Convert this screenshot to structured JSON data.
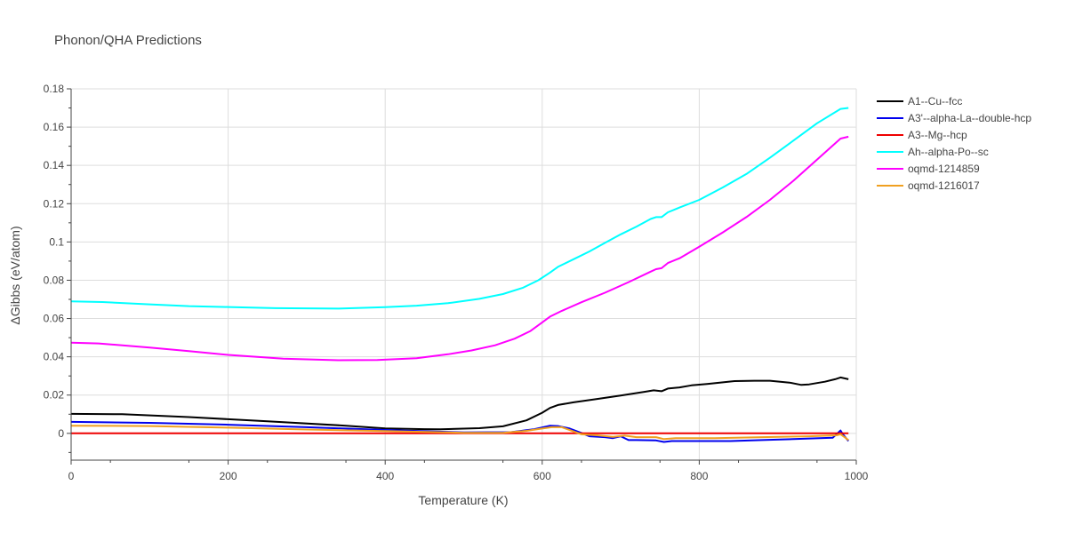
{
  "chart_data": {
    "type": "line",
    "title": "Phonon/QHA Predictions",
    "xlabel": "Temperature (K)",
    "ylabel": "ΔGibbs (eV/atom)",
    "xlim": [
      0,
      1000
    ],
    "ylim": [
      -0.014,
      0.18
    ],
    "xticks": [
      0,
      200,
      400,
      600,
      800,
      1000
    ],
    "xtick_labels": [
      "0",
      "200",
      "400",
      "600",
      "800",
      "1000"
    ],
    "yticks": [
      0,
      0.02,
      0.04,
      0.06,
      0.08,
      0.1,
      0.12,
      0.14,
      0.16,
      0.18
    ],
    "ytick_labels": [
      "0",
      "0.02",
      "0.04",
      "0.06",
      "0.08",
      "0.1",
      "0.12",
      "0.14",
      "0.16",
      "0.18"
    ],
    "grid": true,
    "legend_position": "top-right-outside",
    "series": [
      {
        "name": "A1--Cu--fcc",
        "color": "#000000",
        "points": [
          [
            0,
            0.0102
          ],
          [
            65,
            0.01
          ],
          [
            150,
            0.0085
          ],
          [
            250,
            0.0063
          ],
          [
            350,
            0.004
          ],
          [
            400,
            0.0026
          ],
          [
            450,
            0.0022
          ],
          [
            470,
            0.0021
          ],
          [
            520,
            0.0027
          ],
          [
            550,
            0.0037
          ],
          [
            580,
            0.0068
          ],
          [
            600,
            0.0108
          ],
          [
            610,
            0.0133
          ],
          [
            620,
            0.0148
          ],
          [
            640,
            0.0162
          ],
          [
            670,
            0.018
          ],
          [
            700,
            0.0198
          ],
          [
            730,
            0.0217
          ],
          [
            742,
            0.0225
          ],
          [
            752,
            0.022
          ],
          [
            760,
            0.0234
          ],
          [
            775,
            0.024
          ],
          [
            790,
            0.0251
          ],
          [
            810,
            0.0258
          ],
          [
            845,
            0.0273
          ],
          [
            870,
            0.0275
          ],
          [
            890,
            0.0275
          ],
          [
            915,
            0.0265
          ],
          [
            930,
            0.0253
          ],
          [
            940,
            0.0256
          ],
          [
            960,
            0.027
          ],
          [
            973,
            0.0283
          ],
          [
            980,
            0.0292
          ],
          [
            990,
            0.0283
          ]
        ]
      },
      {
        "name": "A3'--alpha-La--double-hcp",
        "color": "#0000ee",
        "points": [
          [
            0,
            0.006
          ],
          [
            100,
            0.0055
          ],
          [
            200,
            0.0045
          ],
          [
            300,
            0.0032
          ],
          [
            400,
            0.0018
          ],
          [
            500,
            0.0005
          ],
          [
            560,
            0.0006
          ],
          [
            590,
            0.0022
          ],
          [
            610,
            0.004
          ],
          [
            620,
            0.0038
          ],
          [
            635,
            0.0025
          ],
          [
            650,
            0.0002
          ],
          [
            660,
            -0.0015
          ],
          [
            680,
            -0.002
          ],
          [
            690,
            -0.0025
          ],
          [
            700,
            -0.0015
          ],
          [
            710,
            -0.0035
          ],
          [
            720,
            -0.0035
          ],
          [
            745,
            -0.0037
          ],
          [
            755,
            -0.0045
          ],
          [
            765,
            -0.004
          ],
          [
            800,
            -0.004
          ],
          [
            840,
            -0.004
          ],
          [
            880,
            -0.0035
          ],
          [
            920,
            -0.003
          ],
          [
            970,
            -0.0023
          ],
          [
            980,
            0.0015
          ],
          [
            983,
            -0.0005
          ],
          [
            990,
            -0.004
          ]
        ]
      },
      {
        "name": "A3--Mg--hcp",
        "color": "#ee0000",
        "points": [
          [
            0,
            0.0
          ],
          [
            990,
            0.0
          ]
        ]
      },
      {
        "name": "Ah--alpha-Po--sc",
        "color": "#00ffff",
        "points": [
          [
            0,
            0.069
          ],
          [
            40,
            0.0686
          ],
          [
            100,
            0.0674
          ],
          [
            150,
            0.0665
          ],
          [
            200,
            0.066
          ],
          [
            260,
            0.0654
          ],
          [
            300,
            0.0653
          ],
          [
            340,
            0.0652
          ],
          [
            400,
            0.0659
          ],
          [
            440,
            0.0667
          ],
          [
            480,
            0.068
          ],
          [
            520,
            0.0703
          ],
          [
            550,
            0.0728
          ],
          [
            575,
            0.076
          ],
          [
            595,
            0.08
          ],
          [
            610,
            0.084
          ],
          [
            620,
            0.087
          ],
          [
            640,
            0.091
          ],
          [
            660,
            0.095
          ],
          [
            680,
            0.0995
          ],
          [
            700,
            0.104
          ],
          [
            720,
            0.108
          ],
          [
            738,
            0.112
          ],
          [
            745,
            0.113
          ],
          [
            752,
            0.113
          ],
          [
            760,
            0.1155
          ],
          [
            775,
            0.118
          ],
          [
            800,
            0.122
          ],
          [
            830,
            0.1285
          ],
          [
            860,
            0.1355
          ],
          [
            890,
            0.144
          ],
          [
            920,
            0.153
          ],
          [
            950,
            0.162
          ],
          [
            980,
            0.1695
          ],
          [
            990,
            0.17
          ]
        ]
      },
      {
        "name": "oqmd-1214859",
        "color": "#ff00ff",
        "points": [
          [
            0,
            0.0474
          ],
          [
            35,
            0.047
          ],
          [
            100,
            0.0448
          ],
          [
            150,
            0.043
          ],
          [
            200,
            0.041
          ],
          [
            270,
            0.039
          ],
          [
            340,
            0.0382
          ],
          [
            390,
            0.0383
          ],
          [
            440,
            0.0393
          ],
          [
            480,
            0.0413
          ],
          [
            510,
            0.0433
          ],
          [
            540,
            0.046
          ],
          [
            565,
            0.0495
          ],
          [
            585,
            0.0535
          ],
          [
            600,
            0.058
          ],
          [
            610,
            0.061
          ],
          [
            625,
            0.064
          ],
          [
            650,
            0.0685
          ],
          [
            680,
            0.0735
          ],
          [
            710,
            0.079
          ],
          [
            738,
            0.0845
          ],
          [
            745,
            0.0858
          ],
          [
            752,
            0.0863
          ],
          [
            760,
            0.089
          ],
          [
            775,
            0.0915
          ],
          [
            800,
            0.0975
          ],
          [
            830,
            0.105
          ],
          [
            860,
            0.113
          ],
          [
            890,
            0.122
          ],
          [
            920,
            0.132
          ],
          [
            950,
            0.143
          ],
          [
            980,
            0.154
          ],
          [
            990,
            0.155
          ]
        ]
      },
      {
        "name": "oqmd-1216017",
        "color": "#f0a020",
        "points": [
          [
            0,
            0.004
          ],
          [
            100,
            0.0038
          ],
          [
            200,
            0.003
          ],
          [
            300,
            0.002
          ],
          [
            400,
            0.0012
          ],
          [
            500,
            0.0003
          ],
          [
            550,
            0.0003
          ],
          [
            580,
            0.0013
          ],
          [
            600,
            0.0025
          ],
          [
            612,
            0.0032
          ],
          [
            625,
            0.0032
          ],
          [
            640,
            0.001
          ],
          [
            650,
            -0.0005
          ],
          [
            670,
            -0.001
          ],
          [
            690,
            -0.0018
          ],
          [
            705,
            -0.0012
          ],
          [
            720,
            -0.002
          ],
          [
            745,
            -0.002
          ],
          [
            755,
            -0.003
          ],
          [
            770,
            -0.0025
          ],
          [
            820,
            -0.0025
          ],
          [
            880,
            -0.002
          ],
          [
            940,
            -0.0015
          ],
          [
            975,
            -0.001
          ],
          [
            980,
            -0.0005
          ],
          [
            985,
            -0.002
          ],
          [
            990,
            -0.0035
          ]
        ]
      }
    ]
  }
}
